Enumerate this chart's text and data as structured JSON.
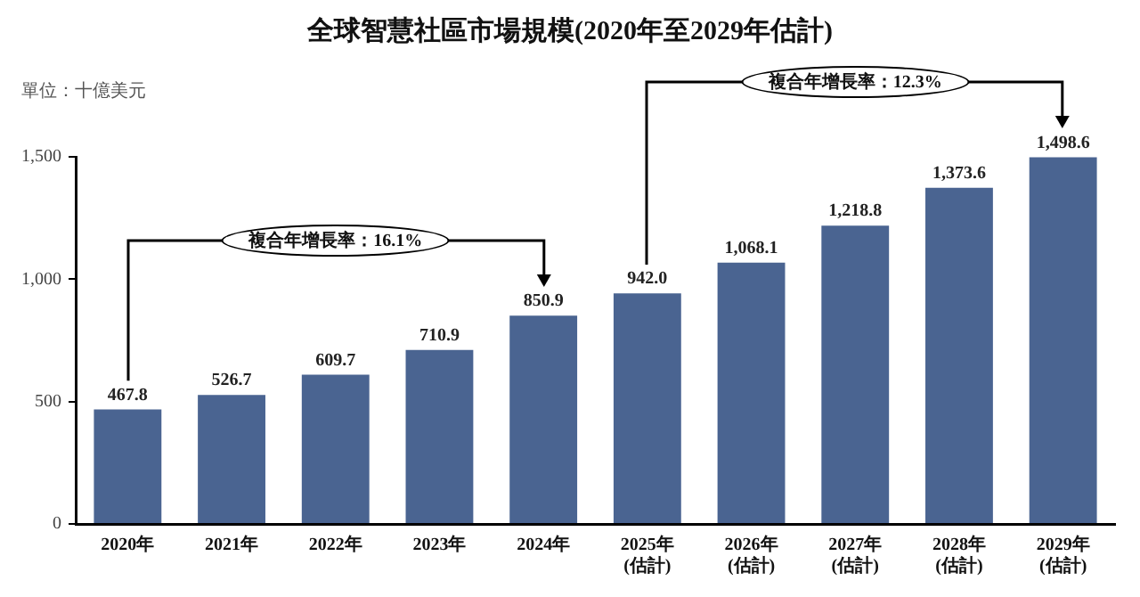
{
  "chart_data": {
    "type": "bar",
    "title": "全球智慧社區市場規模(2020年至2029年估計)",
    "ylabel": "單位：十億美元",
    "categories": [
      "2020年",
      "2021年",
      "2022年",
      "2023年",
      "2024年",
      "2025年\n(估計)",
      "2026年\n(估計)",
      "2027年\n(估計)",
      "2028年\n(估計)",
      "2029年\n(估計)"
    ],
    "values": [
      467.8,
      526.7,
      609.7,
      710.9,
      850.9,
      942.0,
      1068.1,
      1218.8,
      1373.6,
      1498.6
    ],
    "value_labels": [
      "467.8",
      "526.7",
      "609.7",
      "710.9",
      "850.9",
      "942.0",
      "1,068.1",
      "1,218.8",
      "1,373.6",
      "1,498.6"
    ],
    "color": "#4a6491",
    "ylim": [
      0,
      1500
    ],
    "yticks": [
      0,
      500,
      {
        "value": 1000,
        "label": "1,000"
      },
      {
        "value": 1500,
        "label": "1,500"
      }
    ],
    "annotations": [
      "複合年增長率：16.1%",
      "複合年增長率：12.3%"
    ],
    "grid": false,
    "legend": false
  }
}
